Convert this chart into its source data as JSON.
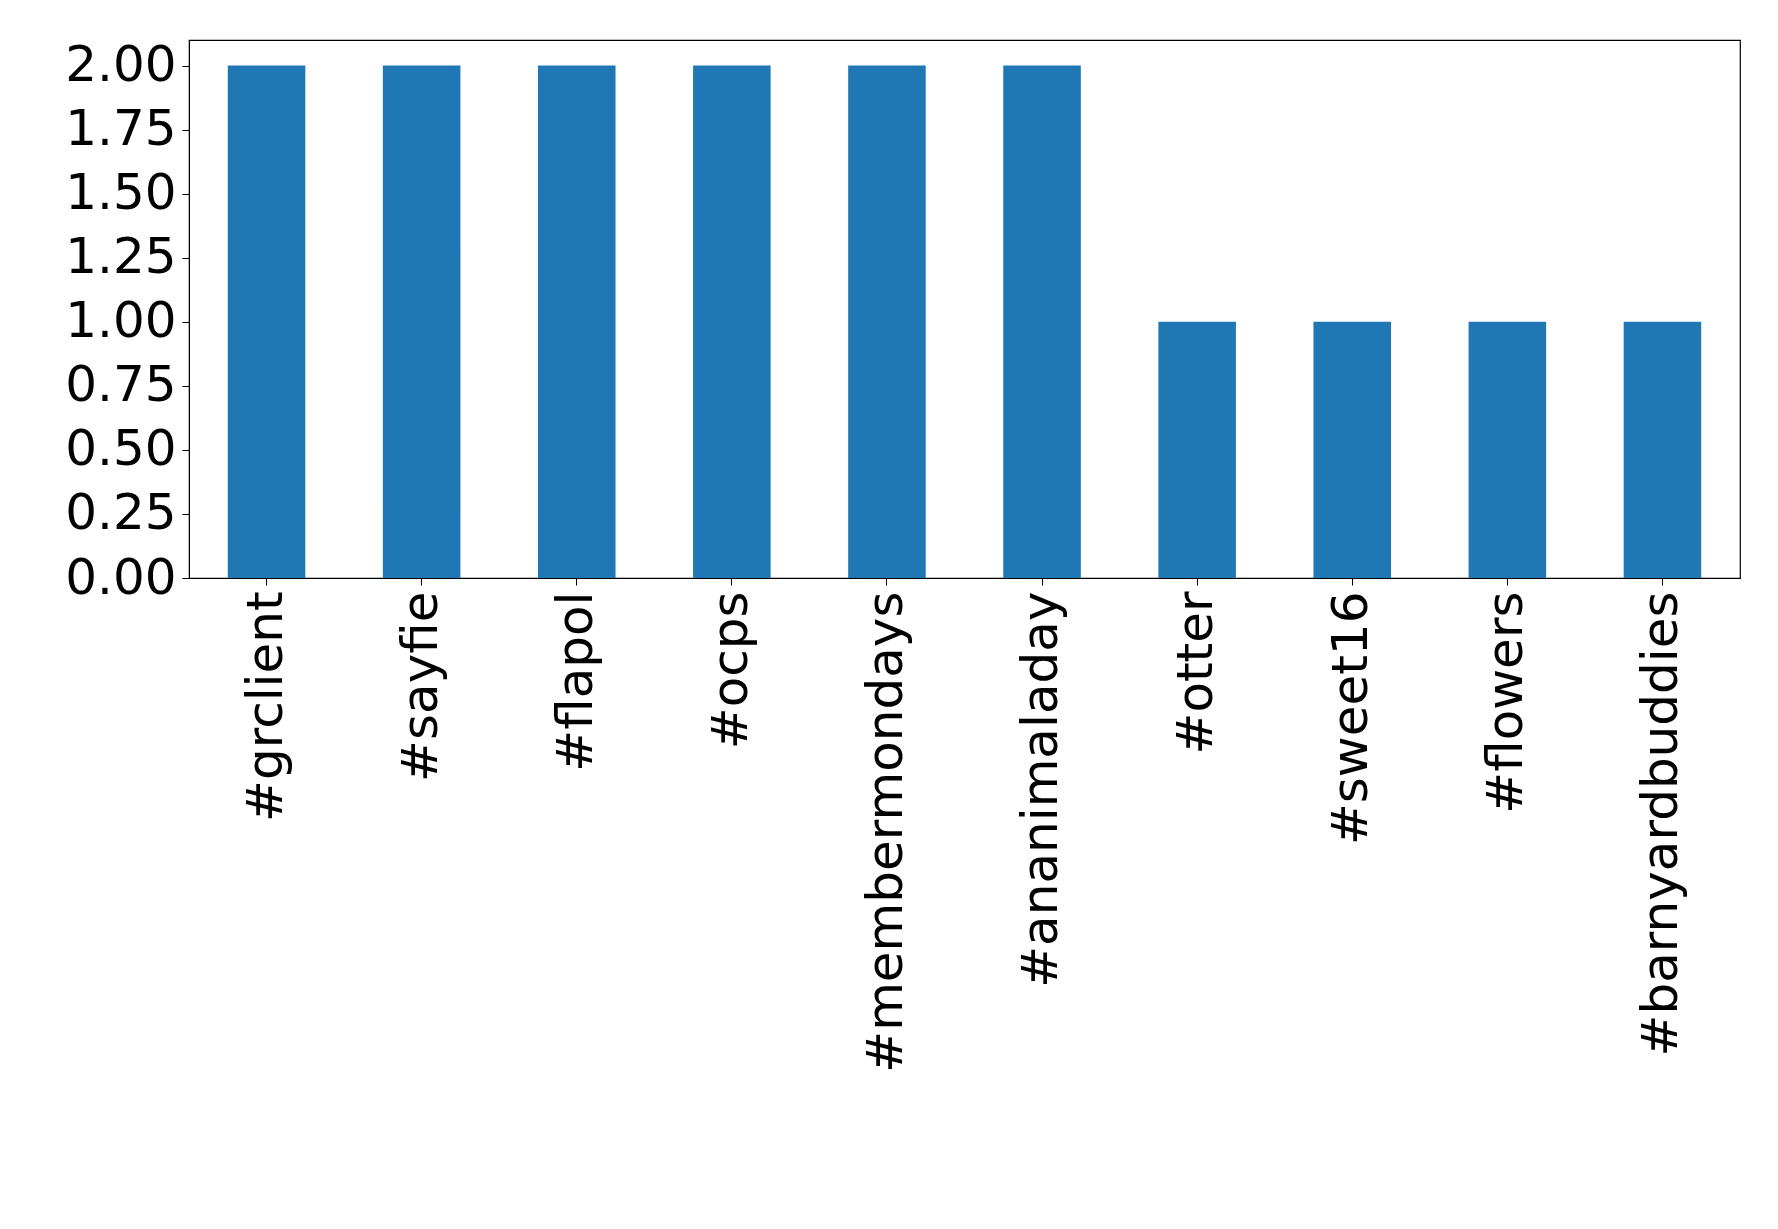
{
  "chart_data": {
    "type": "bar",
    "categories": [
      "#grclient",
      "#sayfie",
      "#flapol",
      "#ocps",
      "#membermondays",
      "#ananimaladay",
      "#otter",
      "#sweet16",
      "#flowers",
      "#barnyardbuddies"
    ],
    "values": [
      2,
      2,
      2,
      2,
      2,
      2,
      1,
      1,
      1,
      1
    ],
    "color": "#1f77b4",
    "ylim": [
      0,
      2.1
    ],
    "yticks": [
      {
        "value": 0,
        "label": "0.00"
      },
      {
        "value": 0.25,
        "label": "0.25"
      },
      {
        "value": 0.5,
        "label": "0.50"
      },
      {
        "value": 0.75,
        "label": "0.75"
      },
      {
        "value": 1,
        "label": "1.00"
      },
      {
        "value": 1.25,
        "label": "1.25"
      },
      {
        "value": 1.5,
        "label": "1.50"
      },
      {
        "value": 1.75,
        "label": "1.75"
      },
      {
        "value": 2,
        "label": "2.00"
      }
    ]
  }
}
